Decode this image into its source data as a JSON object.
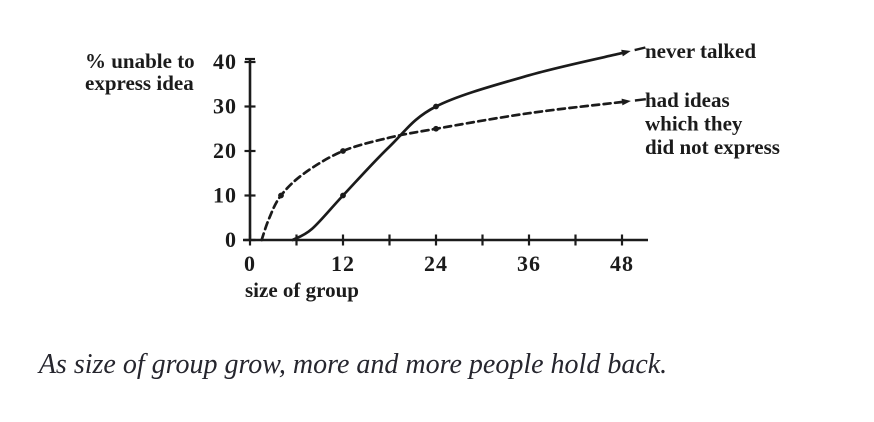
{
  "figure": {
    "caption": "As size of group grow, more and more people hold back.",
    "background": "#ffffff",
    "ink_color": "#1b1b1b"
  },
  "chart_data": {
    "type": "line",
    "title": "",
    "xlabel": "size of group",
    "ylabel": "% unable to express idea",
    "ylabel_lines": [
      "% unable to",
      "express idea"
    ],
    "xlim": [
      0,
      51
    ],
    "ylim": [
      0,
      42
    ],
    "grid": false,
    "legend_position": "right of line ends",
    "y_ticks": [
      {
        "value": 0,
        "label": "0"
      },
      {
        "value": 10,
        "label": "10"
      },
      {
        "value": 20,
        "label": "20"
      },
      {
        "value": 30,
        "label": "30"
      },
      {
        "value": 40,
        "label": "40"
      }
    ],
    "x_minor_tick_values": [
      0,
      6,
      12,
      18,
      24,
      30,
      36,
      42,
      48
    ],
    "x_ticks": [
      {
        "value": 0,
        "label": "0"
      },
      {
        "value": 12,
        "label": "12"
      },
      {
        "value": 24,
        "label": "24"
      },
      {
        "value": 36,
        "label": "36"
      },
      {
        "value": 48,
        "label": "48"
      }
    ],
    "series": [
      {
        "name": "never talked",
        "label_lines": [
          "never talked"
        ],
        "line_style": "solid",
        "points": [
          [
            5.5,
            0
          ],
          [
            8,
            2.5
          ],
          [
            12,
            10
          ],
          [
            18,
            21
          ],
          [
            24,
            30
          ],
          [
            36,
            37
          ],
          [
            48,
            42
          ]
        ],
        "marker_points": [
          [
            12,
            10
          ],
          [
            24,
            30
          ]
        ]
      },
      {
        "name": "had ideas which they did not express",
        "label_lines": [
          "had ideas",
          "which they",
          "did not express"
        ],
        "line_style": "dashed",
        "points": [
          [
            1.5,
            0
          ],
          [
            2.5,
            5
          ],
          [
            4,
            10
          ],
          [
            7,
            15
          ],
          [
            12,
            20
          ],
          [
            18,
            23
          ],
          [
            24,
            25
          ],
          [
            36,
            28.5
          ],
          [
            48,
            31
          ]
        ],
        "marker_points": [
          [
            4,
            10
          ],
          [
            12,
            20
          ],
          [
            24,
            25
          ]
        ]
      }
    ]
  }
}
